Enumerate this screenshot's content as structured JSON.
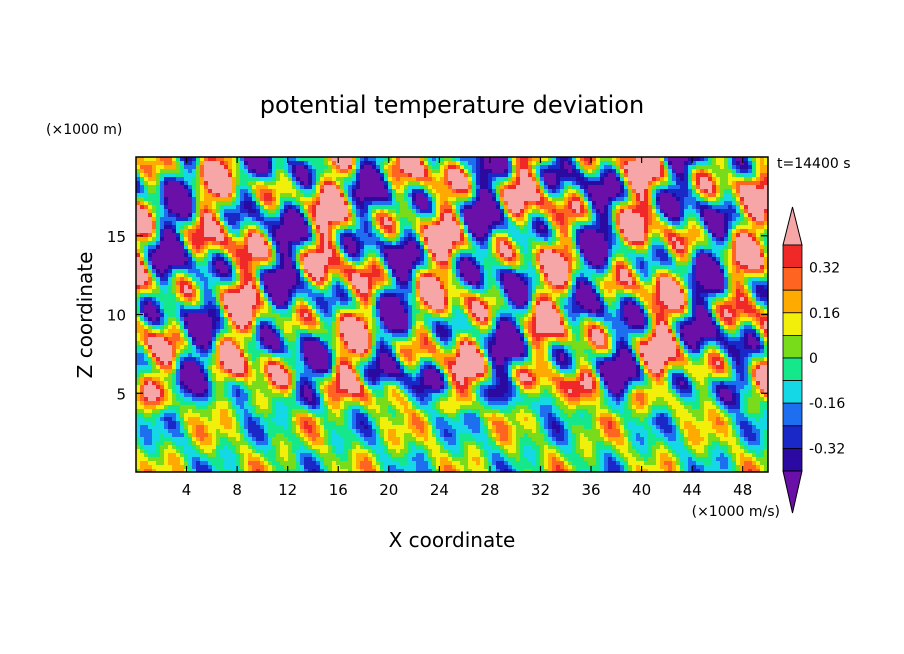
{
  "chart_data": {
    "type": "heatmap",
    "title": "potential temperature deviation",
    "time_label": "t=14400 s",
    "xlabel": "X coordinate",
    "ylabel": "Z coordinate",
    "x_unit": "(×1000 m/s)",
    "y_unit": "(×1000 m)",
    "xlim": [
      0,
      50
    ],
    "ylim": [
      0,
      20
    ],
    "x_ticks": [
      "4",
      "8",
      "12",
      "16",
      "20",
      "24",
      "28",
      "32",
      "36",
      "40",
      "44",
      "48"
    ],
    "y_ticks": [
      "5",
      "10",
      "15"
    ],
    "colorbar": {
      "levels": [
        -0.4,
        -0.32,
        -0.24,
        -0.16,
        -0.08,
        0,
        0.08,
        0.16,
        0.24,
        0.32,
        0.4
      ],
      "tick_labels": [
        "-0.32",
        "-0.16",
        "0",
        "0.16",
        "0.32"
      ],
      "extend": "both",
      "colors": [
        "#6a0fa8",
        "#2a0aa0",
        "#1a28c8",
        "#1e6ef0",
        "#14d8e6",
        "#14e88a",
        "#78dc1a",
        "#f2f00a",
        "#ffaa00",
        "#ff6420",
        "#f02828",
        "#f7a6a8"
      ]
    }
  }
}
